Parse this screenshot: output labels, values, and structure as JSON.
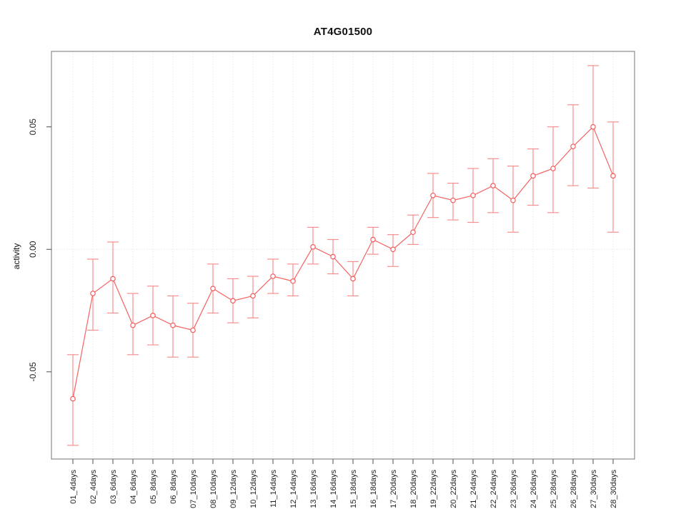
{
  "chart_data": {
    "type": "line",
    "title": "AT4G01500",
    "xlabel": "",
    "ylabel": "activity",
    "marker": "open-circle",
    "legend": "none",
    "grid": "vertical dotted gridline at every category; dotted horizontal line at y=0",
    "x_tick_label_rotation_deg": 90,
    "ylim": [
      -0.0856,
      0.0808
    ],
    "y_ticks": [
      {
        "value": -0.05,
        "label": "-0.05"
      },
      {
        "value": 0.0,
        "label": "0.00"
      },
      {
        "value": 0.05,
        "label": "0.05"
      }
    ],
    "categories": [
      "01_4days",
      "02_4days",
      "03_6days",
      "04_6days",
      "05_8days",
      "06_8days",
      "07_10days",
      "08_10days",
      "09_12days",
      "10_12days",
      "11_14days",
      "12_14days",
      "13_16days",
      "14_16days",
      "15_18days",
      "16_18days",
      "17_20days",
      "18_20days",
      "19_22days",
      "20_22days",
      "21_24days",
      "22_24days",
      "23_26days",
      "24_26days",
      "25_28days",
      "26_28days",
      "27_30days",
      "28_30days"
    ],
    "series": [
      {
        "name": "activity",
        "values": [
          -0.061,
          -0.018,
          -0.012,
          -0.031,
          -0.027,
          -0.031,
          -0.033,
          -0.016,
          -0.021,
          -0.019,
          -0.011,
          -0.013,
          0.001,
          -0.003,
          -0.012,
          0.004,
          0.0,
          0.007,
          0.022,
          0.02,
          0.022,
          0.026,
          0.02,
          0.03,
          0.033,
          0.042,
          0.05,
          0.03
        ],
        "error_low": [
          -0.08,
          -0.033,
          -0.026,
          -0.043,
          -0.039,
          -0.044,
          -0.044,
          -0.026,
          -0.03,
          -0.028,
          -0.018,
          -0.019,
          -0.006,
          -0.01,
          -0.019,
          -0.002,
          -0.007,
          0.002,
          0.013,
          0.012,
          0.011,
          0.015,
          0.007,
          0.018,
          0.015,
          0.026,
          0.025,
          0.007
        ],
        "error_high": [
          -0.043,
          -0.004,
          0.003,
          -0.018,
          -0.015,
          -0.019,
          -0.022,
          -0.006,
          -0.012,
          -0.011,
          -0.004,
          -0.006,
          0.009,
          0.004,
          -0.005,
          0.009,
          0.006,
          0.014,
          0.031,
          0.027,
          0.033,
          0.037,
          0.034,
          0.041,
          0.05,
          0.059,
          0.075,
          0.052
        ]
      }
    ],
    "colors": {
      "line": "#f46262",
      "point": "#f25c5c",
      "errorbar": "#f78f8f",
      "grid": "#e2e2e2",
      "zero_line": "#dedede",
      "frame": "#8a8a8a",
      "tick": "#4d4d4d",
      "text": "#1f1f1f",
      "background": "#ffffff"
    }
  }
}
